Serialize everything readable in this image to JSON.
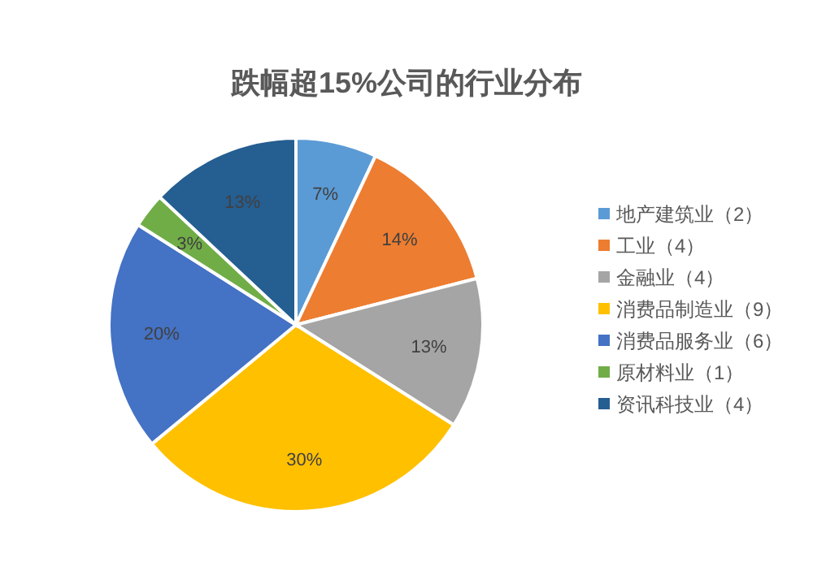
{
  "chart_data": {
    "type": "pie",
    "title": "跌幅超15%公司的行业分布",
    "categories": [
      "地产建筑业（2）",
      "工业（4）",
      "金融业（4）",
      "消费品制造业（9）",
      "消费品服务业（6）",
      "原材料业（1）",
      "资讯科技业（4）"
    ],
    "values": [
      7,
      14,
      13,
      30,
      20,
      3,
      13
    ],
    "value_labels": [
      "7%",
      "14%",
      "13%",
      "30%",
      "20%",
      "3%",
      "13%"
    ],
    "colors": [
      "#5b9bd5",
      "#ed7d31",
      "#a5a5a5",
      "#ffc000",
      "#4472c4",
      "#70ad47",
      "#255e91"
    ],
    "legend": "right"
  }
}
